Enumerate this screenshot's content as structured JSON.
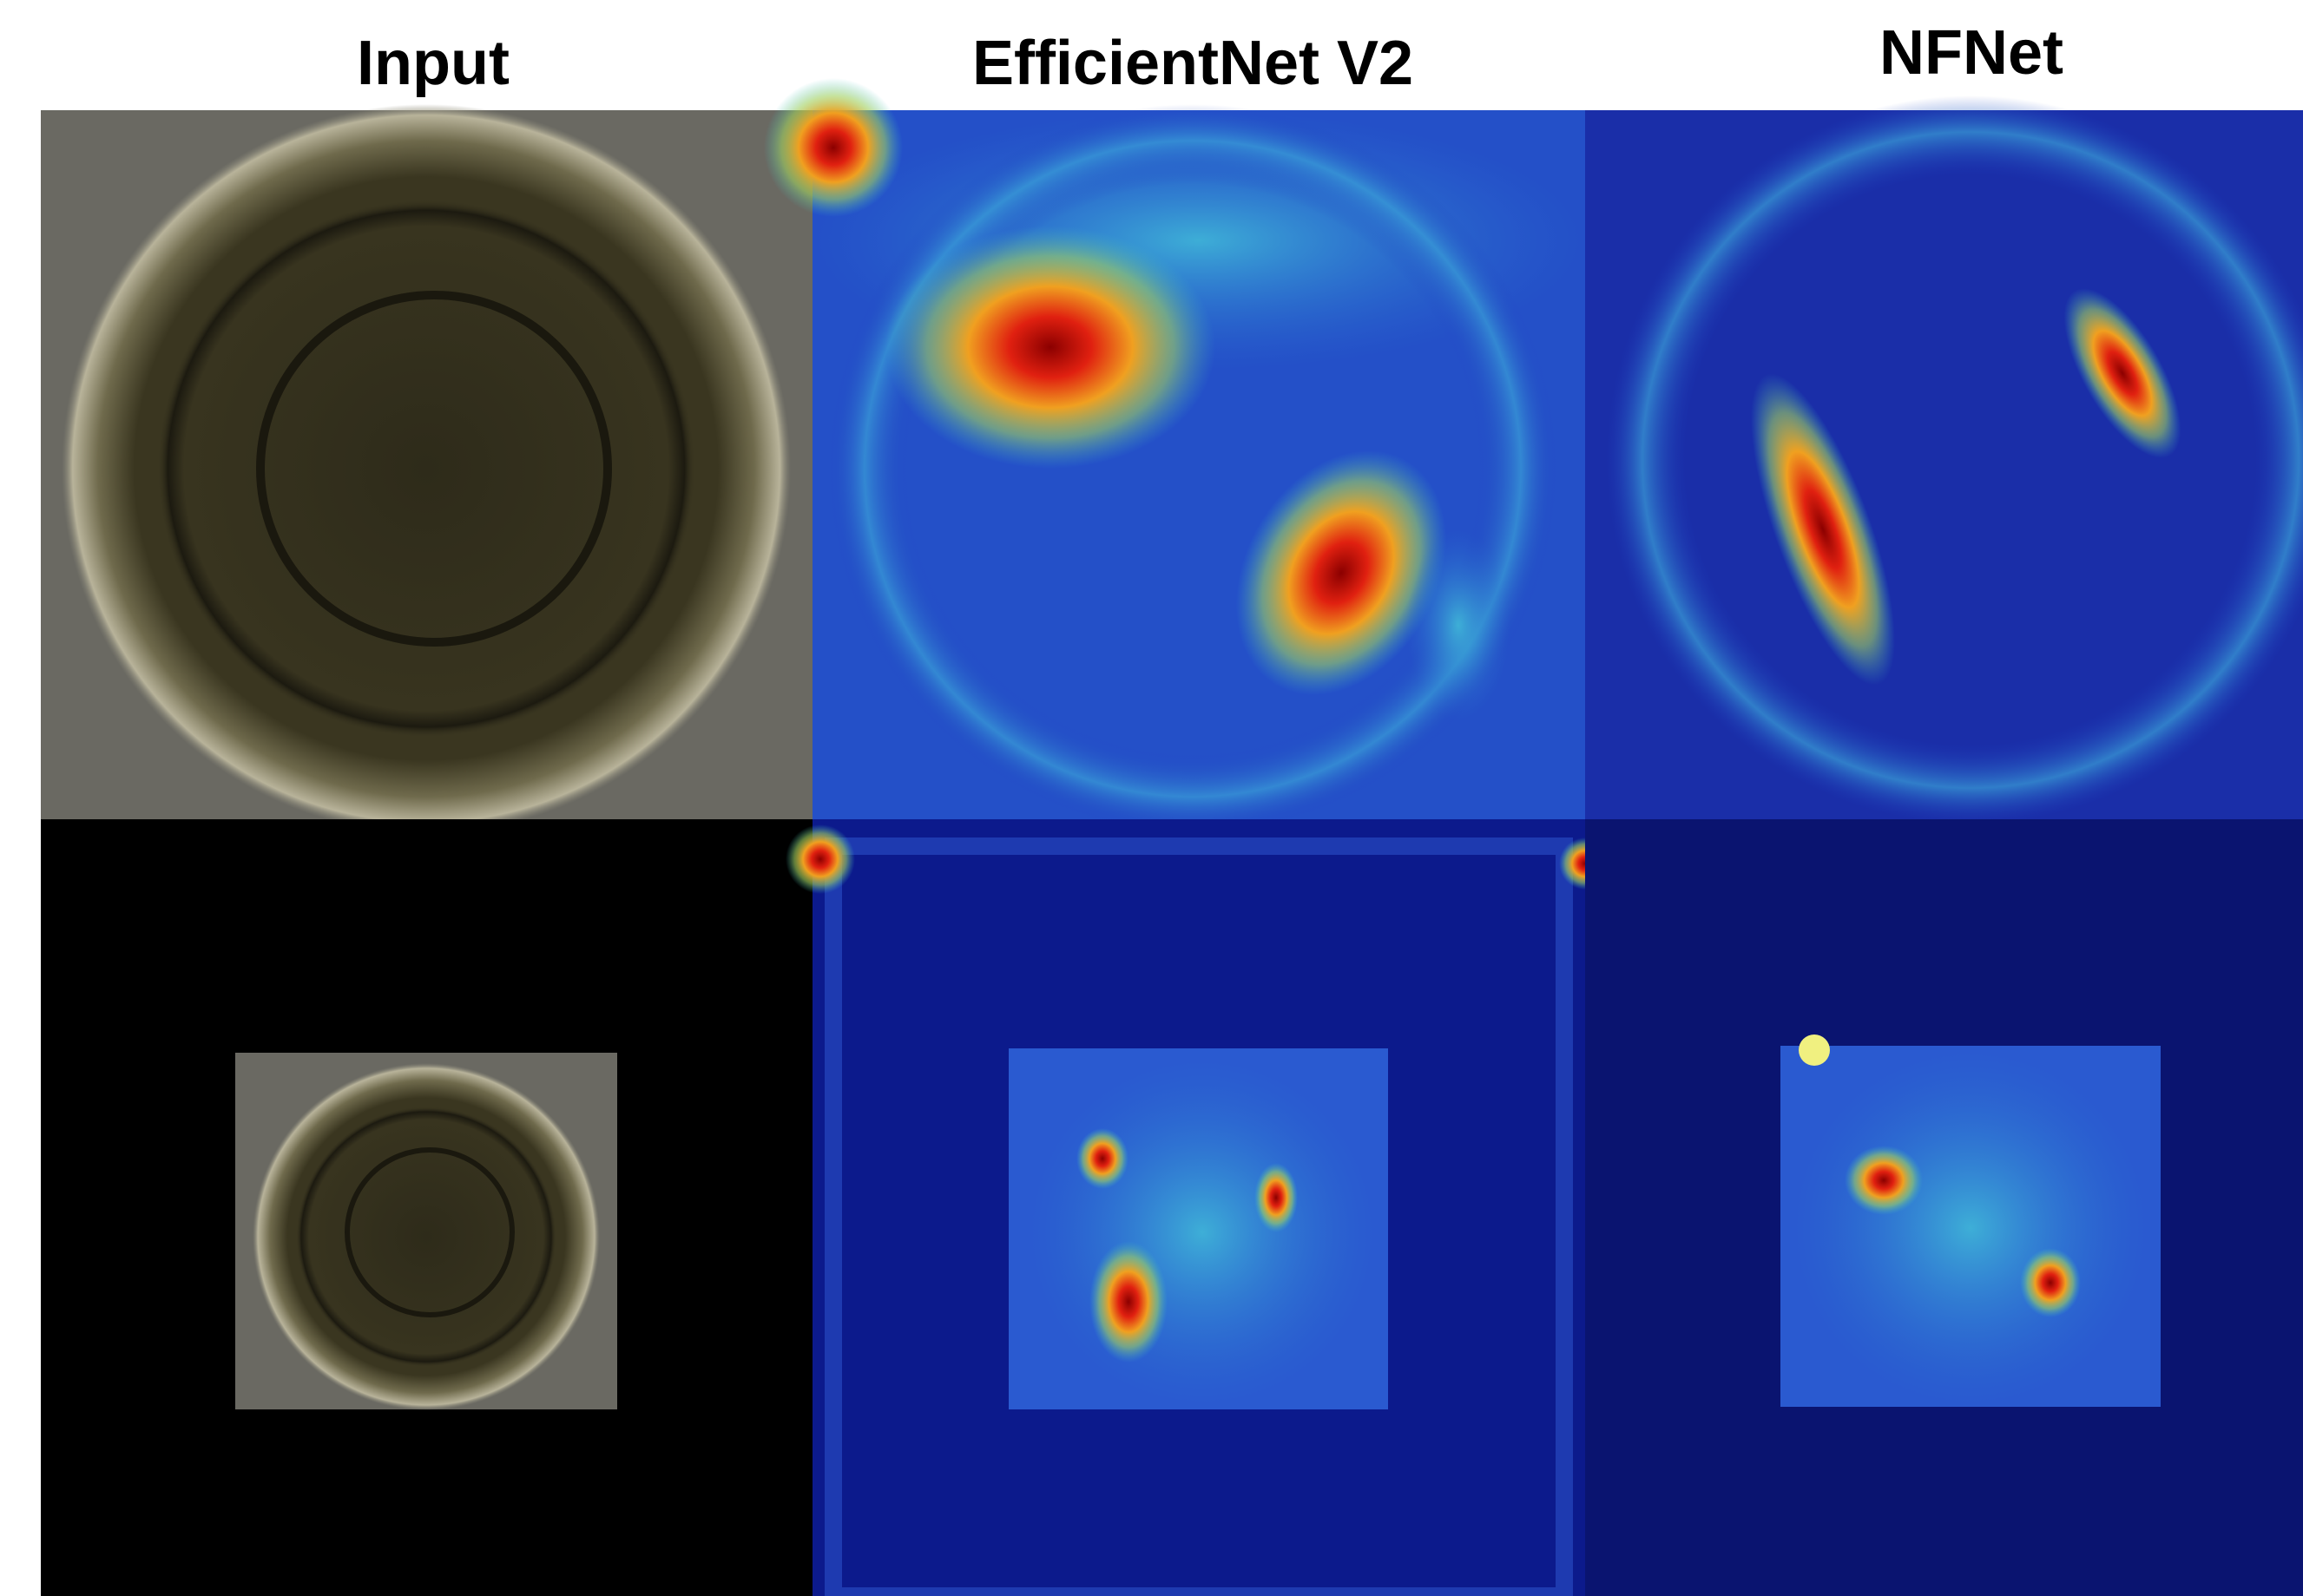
{
  "columns": [
    "Input",
    "EfficientNet V2",
    "NFNet"
  ]
}
